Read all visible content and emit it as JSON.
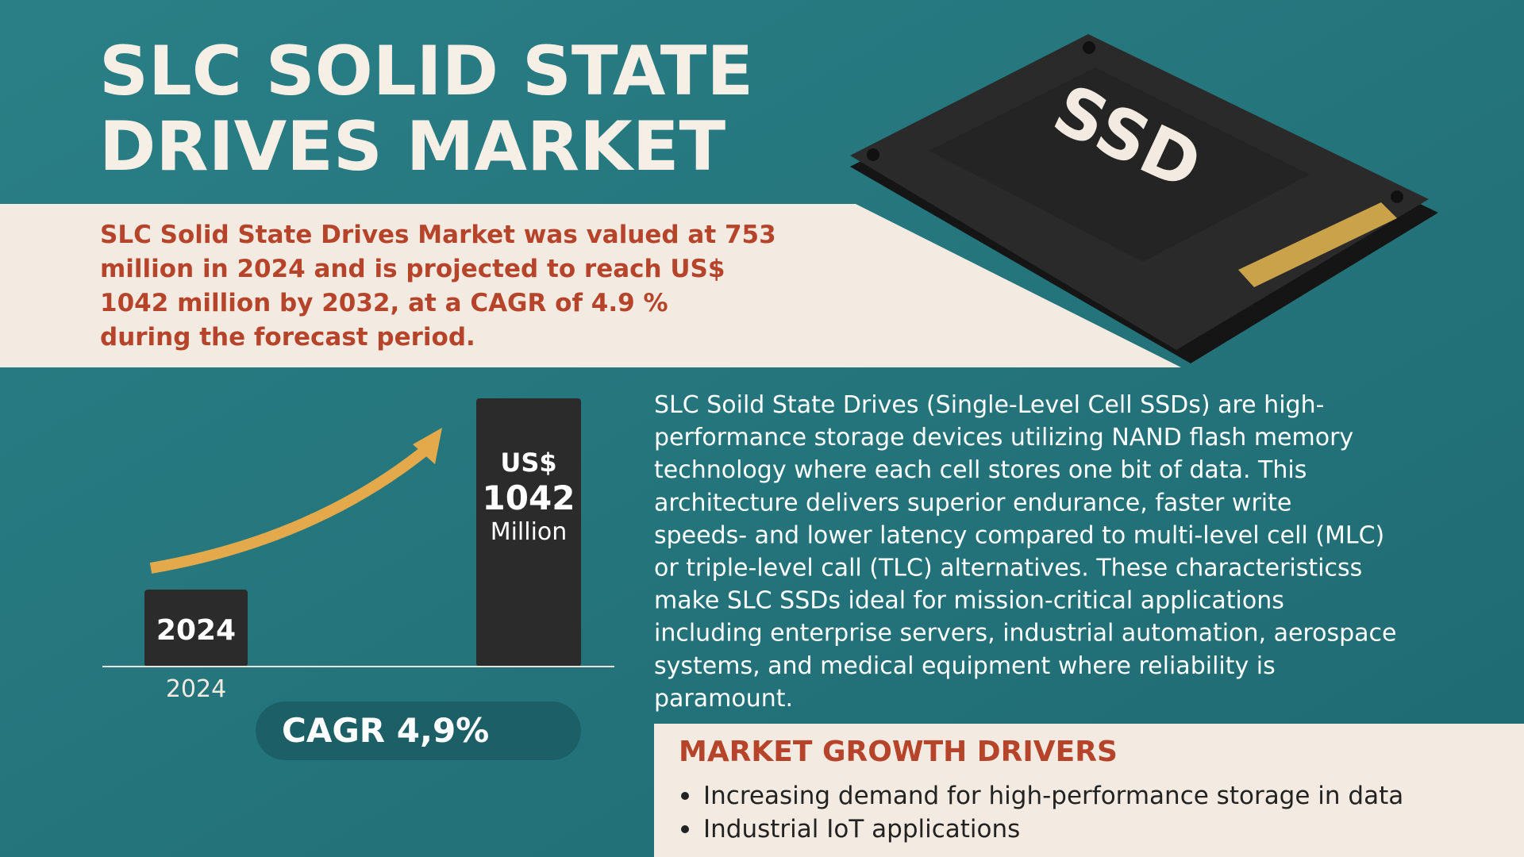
{
  "header": {
    "title_lines": [
      "SLC SOLID STATE",
      "DRIVES MARKET"
    ]
  },
  "summary": {
    "lines": [
      "SLC Solid State Drives Market was valued at 753",
      "million in 2024 and is projected to reach US$",
      "1042 million by 2032, at a CAGR of 4.9 %",
      "during the forecast period."
    ]
  },
  "illustration": {
    "label": "SSD"
  },
  "chart": {
    "bar_labels": [
      [
        "2024"
      ],
      [
        "US$",
        "1042",
        "Million"
      ]
    ],
    "axis_label": "2024",
    "cagr": "CAGR 4,9%"
  },
  "description": {
    "lines": [
      "SLC Soild State Drives (Single-Level Cell SSDs) are high-",
      "performance storage devices utilizing NAND flash memory",
      "technology where each cell stores one bit of data. This",
      "architecture delivers superior endurance, faster write",
      "speeds- and lower latency compared to multi-level cell (MLC)",
      "or triple-level call (TLC) alternatives. These characteristicss",
      "make SLC SSDs ideal for mission-critical applications",
      "including enterprise servers, industrial automation, aerospace",
      "systems, and medical equipment where reliability is",
      "paramount."
    ]
  },
  "drivers": {
    "heading": "MARKET GROWTH DRIVERS",
    "items": [
      "Increasing demand for high-performance storage in data",
      "Industrial IoT applications"
    ]
  }
}
